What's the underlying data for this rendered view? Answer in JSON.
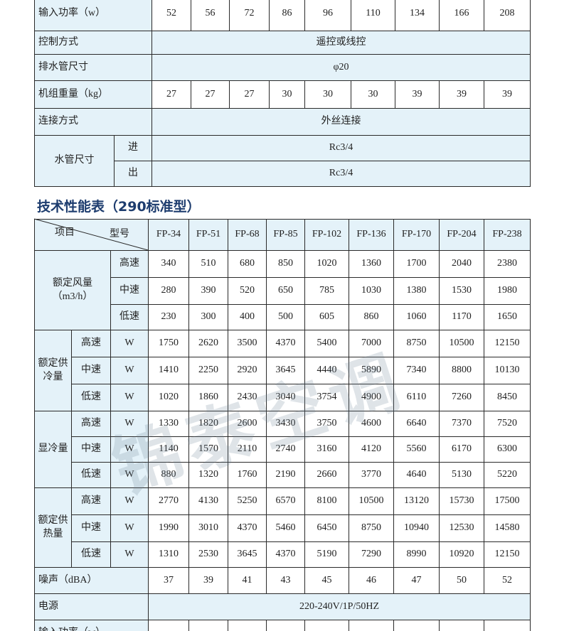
{
  "top_table": {
    "rows": [
      {
        "label": "输入功率（w）",
        "values": [
          52,
          56,
          72,
          86,
          96,
          110,
          134,
          166,
          208
        ]
      },
      {
        "label": "控制方式",
        "value": "遥控或线控"
      },
      {
        "label": "排水管尺寸",
        "value": "φ20"
      },
      {
        "label": "机组重量（kg）",
        "values": [
          27,
          27,
          27,
          30,
          30,
          30,
          39,
          39,
          39
        ]
      },
      {
        "label": "连接方式",
        "value": "外丝连接"
      }
    ],
    "pipe": {
      "label": "水管尺寸",
      "rows": [
        {
          "label": "进",
          "value": "Rc3/4"
        },
        {
          "label": "出",
          "value": "Rc3/4"
        }
      ]
    }
  },
  "section_title": "技术性能表（290标准型）",
  "spec_table": {
    "header": {
      "item": "项目",
      "model": "型号",
      "models": [
        "FP-34",
        "FP-51",
        "FP-68",
        "FP-85",
        "FP-102",
        "FP-136",
        "FP-170",
        "FP-204",
        "FP-238"
      ]
    },
    "groups": [
      {
        "label": "额定风量（m3/h）",
        "rows": [
          {
            "speed": "高速",
            "values": [
              340,
              510,
              680,
              850,
              1020,
              1360,
              1700,
              2040,
              2380
            ]
          },
          {
            "speed": "中速",
            "values": [
              280,
              390,
              520,
              650,
              785,
              1030,
              1380,
              1530,
              1980
            ]
          },
          {
            "speed": "低速",
            "values": [
              230,
              300,
              400,
              500,
              605,
              860,
              1060,
              1170,
              1650
            ]
          }
        ]
      },
      {
        "label": "额定供冷量",
        "unit": "W",
        "rows": [
          {
            "speed": "高速",
            "values": [
              1750,
              2620,
              3500,
              4370,
              5400,
              7000,
              8750,
              10500,
              12150
            ]
          },
          {
            "speed": "中速",
            "values": [
              1410,
              2250,
              2920,
              3645,
              4440,
              5890,
              7340,
              8800,
              10130
            ]
          },
          {
            "speed": "低速",
            "values": [
              1020,
              1860,
              2430,
              3040,
              3754,
              4900,
              6110,
              7260,
              8450
            ]
          }
        ]
      },
      {
        "label": "显冷量",
        "unit": "W",
        "rows": [
          {
            "speed": "高速",
            "values": [
              1330,
              1820,
              2600,
              3430,
              3750,
              4600,
              6640,
              7370,
              7520
            ]
          },
          {
            "speed": "中速",
            "values": [
              1140,
              1570,
              2110,
              2740,
              3160,
              4120,
              5560,
              6170,
              6300
            ]
          },
          {
            "speed": "低速",
            "values": [
              880,
              1320,
              1760,
              2190,
              2660,
              3770,
              4640,
              5130,
              5220
            ]
          }
        ]
      },
      {
        "label": "额定供热量",
        "unit": "W",
        "rows": [
          {
            "speed": "高速",
            "values": [
              2770,
              4130,
              5250,
              6570,
              8100,
              10500,
              13120,
              15730,
              17500
            ]
          },
          {
            "speed": "中速",
            "values": [
              1990,
              3010,
              4370,
              5460,
              6450,
              8750,
              10940,
              12530,
              14580
            ]
          },
          {
            "speed": "低速",
            "values": [
              1310,
              2530,
              3645,
              4370,
              5190,
              7290,
              8990,
              10920,
              12150
            ]
          }
        ]
      }
    ],
    "single_rows": [
      {
        "label": "噪声（dBA）",
        "values": [
          37,
          39,
          41,
          43,
          45,
          46,
          47,
          50,
          52
        ]
      },
      {
        "label": "电源",
        "value": "220-240V/1P/50HZ"
      },
      {
        "label": "输入功率（w）"
      }
    ]
  },
  "watermark": "锦泰空调"
}
